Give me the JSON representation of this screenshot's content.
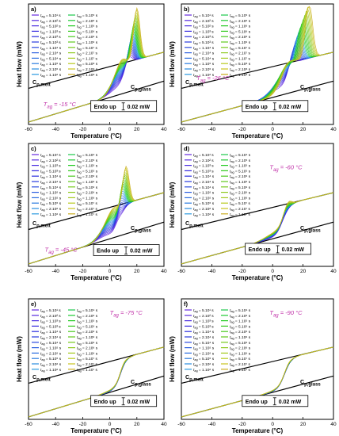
{
  "chart_data": [
    {
      "type": "line",
      "panel": "a)",
      "xlabel": "Temperature (°C)",
      "ylabel": "Heat flow (mW)",
      "xlim": [
        -60,
        40
      ],
      "x_ticks": [
        -60,
        -40,
        -20,
        0,
        20,
        40
      ],
      "grid": false,
      "tag_label": "T",
      "tag_sub": "ag",
      "tag_value": " = -15 °C",
      "tag_color": "#c030a8",
      "melt_label": "C",
      "melt_sub": "p,melt",
      "glass_label": "C",
      "glass_sub": "p,glass",
      "endo_label": "Endo up",
      "scale_label": "0.02 mW",
      "legend_col1": [
        "5.10¹ s",
        "2.10² s",
        "5.10² s",
        "1.10³ s",
        "2.10³ s",
        "5.10³ s",
        "1.10⁴ s",
        "2.10⁴ s",
        "5.10⁴ s",
        "1.10⁵ s",
        "2.10⁵ s",
        "1.10⁶ s"
      ],
      "legend_col2": [
        "5.10⁵ s",
        "2.10⁶ s",
        "1.10⁶ s",
        "5.10⁶ s",
        "2.10⁶ s",
        "1.10⁶ s",
        "5.10⁷ s",
        "2.10⁷ s",
        "1.10⁷ s",
        "5.10⁸ s",
        "2.10⁸ s",
        "1.10⁸ s"
      ],
      "curve_count": 24,
      "peak_range_c": [
        14,
        20
      ],
      "step_c": 10,
      "max_peak_height": 0.95
    },
    {
      "type": "line",
      "panel": "b)",
      "xlabel": "Temperature (°C)",
      "ylabel": "Heat flow (mW)",
      "xlim": [
        -60,
        40
      ],
      "x_ticks": [
        -60,
        -40,
        -20,
        0,
        20,
        40
      ],
      "grid": false,
      "tag_label": "T",
      "tag_sub": "ag",
      "tag_value": " = -26 °C",
      "tag_color": "#c030a8",
      "melt_label": "C",
      "melt_sub": "p,melt",
      "glass_label": "C",
      "glass_sub": "p,glass",
      "endo_label": "Endo up",
      "scale_label": "0.02 mW",
      "legend_col1": [
        "5.10¹ s",
        "2.10² s",
        "5.10² s",
        "1.10³ s",
        "2.10³ s",
        "5.10³ s",
        "1.10⁴ s",
        "2.10⁴ s",
        "5.10⁴ s",
        "1.10⁵ s",
        "2.10⁵ s",
        "1.10⁶ s"
      ],
      "legend_col2": [
        "5.10⁵ s",
        "2.10⁶ s",
        "1.10⁶ s",
        "5.10⁶ s",
        "2.10⁶ s",
        "1.10⁶ s",
        "5.10⁷ s",
        "2.10⁷ s",
        "1.10⁷ s",
        "5.10⁸ s",
        "2.10⁸ s",
        "1.10⁸ s"
      ],
      "curve_count": 24,
      "peak_range_c": [
        12,
        24
      ],
      "step_c": 10,
      "max_peak_height": 1.0
    },
    {
      "type": "line",
      "panel": "c)",
      "xlabel": "Temperature (°C)",
      "ylabel": "Heat flow (mW)",
      "xlim": [
        -60,
        40
      ],
      "x_ticks": [
        -60,
        -40,
        -20,
        0,
        20,
        40
      ],
      "grid": false,
      "tag_label": "T",
      "tag_sub": "ag",
      "tag_value": " = -45 °C",
      "tag_color": "#c030a8",
      "melt_label": "C",
      "melt_sub": "p,melt",
      "glass_label": "C",
      "glass_sub": "p,glass",
      "endo_label": "Endo up",
      "scale_label": "0.02 mW",
      "legend_col1": [
        "5.10¹ s",
        "2.10² s",
        "1.10³ s",
        "5.10³ s",
        "1.10⁴ s",
        "2.10⁴ s",
        "5.10⁴ s",
        "1.10⁵ s",
        "2.10⁵ s",
        "5.10⁵ s",
        "2.10⁶ s",
        "1.10⁶ s"
      ],
      "legend_col2": [
        "5.10⁴ s",
        "2.10⁵ s",
        "1.10⁵ s",
        "5.10⁵ s",
        "2.10⁶ s",
        "1.10⁶ s",
        "5.10⁶ s",
        "2.10⁶ s",
        "1.10⁶ s",
        "5.10⁷ s",
        "2.10⁷ s",
        "1.10⁷ s"
      ],
      "curve_count": 24,
      "peak_range_c": [
        6,
        12
      ],
      "step_c": 8,
      "max_peak_height": 0.7
    },
    {
      "type": "line",
      "panel": "d)",
      "xlabel": "Temperature (°C)",
      "ylabel": "Heat flow (mW)",
      "xlim": [
        -60,
        40
      ],
      "x_ticks": [
        -60,
        -40,
        -20,
        0,
        20,
        40
      ],
      "grid": false,
      "tag_label": "T",
      "tag_sub": "ag",
      "tag_value": " = -60 °C",
      "tag_color": "#c030a8",
      "melt_label": "C",
      "melt_sub": "p,melt",
      "glass_label": "C",
      "glass_sub": "p,glass",
      "endo_label": "Endo up",
      "scale_label": "0.02 mW",
      "legend_col1": [
        "5.10¹ s",
        "2.10² s",
        "1.10³ s",
        "5.10³ s",
        "1.10⁴ s",
        "2.10⁴ s",
        "5.10⁴ s",
        "1.10⁵ s",
        "2.10⁵ s",
        "5.10⁵ s",
        "2.10⁶ s",
        "1.10⁶ s"
      ],
      "legend_col2": [
        "5.10⁴ s",
        "2.10⁵ s",
        "1.10⁵ s",
        "5.10⁵ s",
        "2.10⁶ s",
        "1.10⁶ s",
        "5.10⁶ s",
        "2.10⁶ s",
        "1.10⁶ s",
        "5.10⁷ s",
        "2.10⁷ s",
        "1.10⁷ s"
      ],
      "curve_count": 24,
      "peak_range_c": [
        6,
        10
      ],
      "step_c": 7,
      "max_peak_height": 0.12
    },
    {
      "type": "line",
      "panel": "e)",
      "xlabel": "Temperature (°C)",
      "ylabel": "Heat flow (mW)",
      "xlim": [
        -60,
        40
      ],
      "x_ticks": [
        -60,
        -40,
        -20,
        0,
        20,
        40
      ],
      "grid": false,
      "tag_label": "T",
      "tag_sub": "ag",
      "tag_value": " = -75 °C",
      "tag_color": "#c030a8",
      "melt_label": "C",
      "melt_sub": "p,melt",
      "glass_label": "C",
      "glass_sub": "p,glass",
      "endo_label": "Endo up",
      "scale_label": "0.02 mW",
      "legend_col1": [
        "5.10¹ s",
        "2.10² s",
        "1.10³ s",
        "5.10³ s",
        "1.10⁴ s",
        "2.10⁴ s",
        "5.10⁴ s",
        "1.10⁵ s",
        "2.10⁵ s",
        "5.10⁵ s",
        "2.10⁶ s",
        "1.10⁶ s"
      ],
      "legend_col2": [
        "5.10⁴ s",
        "2.10⁵ s",
        "1.10⁵ s",
        "5.10⁵ s",
        "2.10⁶ s",
        "1.10⁶ s",
        "5.10⁶ s",
        "2.10⁶ s",
        "1.10⁶ s",
        "5.10⁷ s",
        "2.10⁷ s",
        "1.10⁷ s"
      ],
      "curve_count": 24,
      "peak_range_c": [
        8,
        10
      ],
      "step_c": 8,
      "max_peak_height": 0.04
    },
    {
      "type": "line",
      "panel": "f)",
      "xlabel": "Temperature (°C)",
      "ylabel": "Heat flow (mW)",
      "xlim": [
        -60,
        40
      ],
      "x_ticks": [
        -60,
        -40,
        -20,
        0,
        20,
        40
      ],
      "grid": false,
      "tag_label": "T",
      "tag_sub": "ag",
      "tag_value": " = -90 °C",
      "tag_color": "#c030a8",
      "melt_label": "C",
      "melt_sub": "p,melt",
      "glass_label": "C",
      "glass_sub": "p,glass",
      "endo_label": "Endo up",
      "scale_label": "0.02 mW",
      "legend_col1": [
        "5.10¹ s",
        "2.10² s",
        "1.10³ s",
        "5.10³ s",
        "1.10⁴ s",
        "2.10⁴ s",
        "5.10⁴ s",
        "1.10⁵ s",
        "2.10⁵ s",
        "5.10⁵ s",
        "2.10⁶ s",
        "1.10⁶ s"
      ],
      "legend_col2": [
        "5.10⁴ s",
        "2.10⁵ s",
        "1.10⁵ s",
        "5.10⁵ s",
        "2.10⁶ s",
        "1.10⁶ s",
        "5.10⁶ s",
        "2.10⁶ s",
        "1.10⁶ s",
        "5.10⁷ s",
        "2.10⁷ s",
        "1.10⁷ s"
      ],
      "curve_count": 24,
      "peak_range_c": [
        8,
        10
      ],
      "step_c": 8,
      "max_peak_height": 0.03
    }
  ]
}
